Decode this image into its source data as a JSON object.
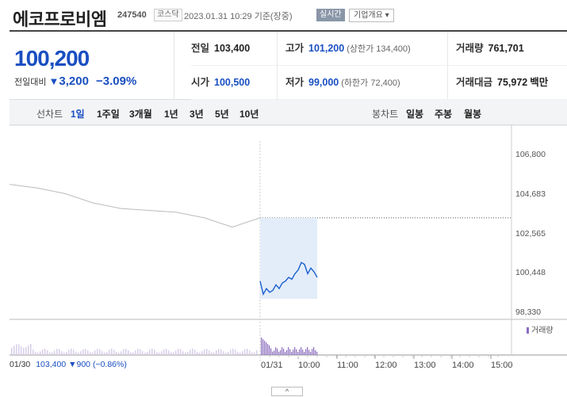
{
  "header": {
    "name": "에코프로비엠",
    "code": "247540",
    "market": "코스닥",
    "as_of": "2023.01.31 10:29 기준(장중)",
    "realtime": "실시간",
    "overview": "기업개요 ▾"
  },
  "summary": {
    "price": "100,200",
    "change_label": "전일대비",
    "change_arrow": "▼",
    "change": "3,200",
    "change_pct": "−3.09%",
    "prev_close": {
      "label": "전일",
      "value": "103,400"
    },
    "high": {
      "label": "고가",
      "value": "101,200",
      "sub": "(상한가 134,400)"
    },
    "volume": {
      "label": "거래량",
      "value": "761,701"
    },
    "open": {
      "label": "시가",
      "value": "100,500"
    },
    "low": {
      "label": "저가",
      "value": "99,000",
      "sub": "(하한가 72,400)"
    },
    "amount": {
      "label": "거래대금",
      "value": "75,972",
      "unit": "백만"
    }
  },
  "tabs": {
    "line_title": "선차트",
    "line_tabs": [
      "1일",
      "1주일",
      "3개월",
      "1년",
      "3년",
      "5년",
      "10년"
    ],
    "active_line_tab": 0,
    "candle_title": "봉차트",
    "candle_tabs": [
      "일봉",
      "주봉",
      "월봉"
    ]
  },
  "chart": {
    "y_ticks": [
      "106,800",
      "104,683",
      "102,565",
      "100,448",
      "98,330"
    ],
    "x_ticks": [
      "01/30",
      "01/31",
      "10:00",
      "11:00",
      "12:00",
      "13:00",
      "14:00",
      "15:00"
    ],
    "volume_label": "거래량",
    "prev_day_summary": {
      "date": "01/30",
      "close": "103,400",
      "arrow": "▼",
      "change": "900",
      "pct": "(−0.86%)"
    },
    "toggle_icon": "^"
  },
  "chart_data": {
    "type": "line",
    "ylim": [
      98330,
      106800
    ],
    "series": [
      {
        "x": [
          "01/30",
          "01/30",
          "01/30",
          "01/30",
          "01/30",
          "01/30",
          "01/30",
          "01/30",
          "01/30",
          "01/30"
        ],
        "values": [
          105200,
          105000,
          104700,
          104200,
          103900,
          103800,
          103700,
          103400,
          102900,
          103400
        ],
        "color": "#bbbbbb"
      },
      {
        "x": [
          "09:00",
          "09:05",
          "09:10",
          "09:15",
          "09:20",
          "09:25",
          "09:30",
          "09:35",
          "09:40",
          "09:45",
          "09:50",
          "09:55",
          "10:00",
          "10:05",
          "10:10",
          "10:15",
          "10:20",
          "10:25",
          "10:29"
        ],
        "values": [
          100000,
          99300,
          99600,
          99400,
          99500,
          99800,
          99600,
          99900,
          100000,
          100200,
          100100,
          100400,
          100600,
          101000,
          100900,
          100400,
          100700,
          100500,
          100200
        ],
        "color": "#1a5fd0"
      }
    ],
    "reference_line": 103400,
    "colors": {
      "accent": "#1a4fc2",
      "volume": "#8b6dbf",
      "prev_line": "#bbbbbb"
    }
  }
}
